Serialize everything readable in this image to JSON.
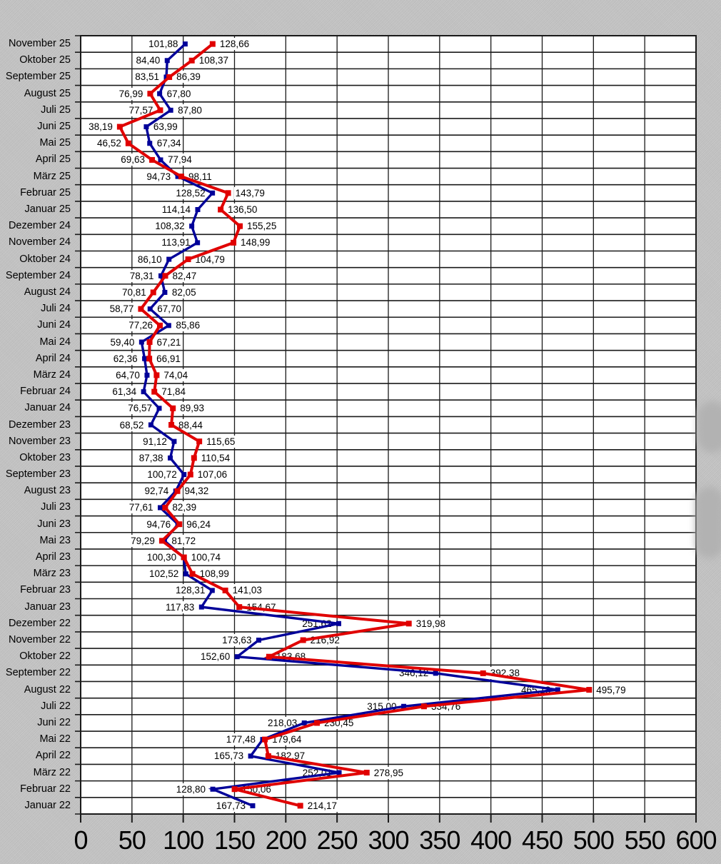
{
  "app": {
    "background_color": "#c5c5c5",
    "plot_background": "#ffffff",
    "grid_color": "#1a1a1a"
  },
  "chart_data": {
    "type": "line",
    "orientation": "horizontal_categories",
    "title": "",
    "xlabel": "",
    "ylabel": "",
    "xlim": [
      0,
      600
    ],
    "x_ticks": [
      "0",
      "50",
      "100",
      "150",
      "200",
      "250",
      "300",
      "350",
      "400",
      "450",
      "500",
      "550",
      "600"
    ],
    "grid": "on",
    "legend": "none",
    "marker": "square",
    "decimal_separator": ",",
    "categories": [
      "November 25",
      "Oktober 25",
      "September 25",
      "August 25",
      "Juli 25",
      "Juni 25",
      "Mai 25",
      "April 25",
      "März 25",
      "Februar 25",
      "Januar 25",
      "Dezember 24",
      "November 24",
      "Oktober 24",
      "September 24",
      "August 24",
      "Juli 24",
      "Juni 24",
      "Mai 24",
      "April 24",
      "März 24",
      "Februar 24",
      "Januar 24",
      "Dezember 23",
      "November 23",
      "Oktober 23",
      "September 23",
      "August 23",
      "Juli 23",
      "Juni 23",
      "Mai 23",
      "April 23",
      "März 23",
      "Februar 23",
      "Januar 23",
      "Dezember 22",
      "November 22",
      "Oktober 22",
      "September 22",
      "August 22",
      "Juli 22",
      "Juni 22",
      "Mai 22",
      "April 22",
      "März 22",
      "Februar 22",
      "Januar 22"
    ],
    "series": [
      {
        "name": "blue-series",
        "color": "#000099",
        "values": [
          101.88,
          84.4,
          83.51,
          76.99,
          87.8,
          63.99,
          67.34,
          77.94,
          94.73,
          128.52,
          114.14,
          108.32,
          113.91,
          86.1,
          78.31,
          82.05,
          67.7,
          85.86,
          59.4,
          62.36,
          64.7,
          61.34,
          76.57,
          68.52,
          91.12,
          87.38,
          100.72,
          92.74,
          77.61,
          94.76,
          81.72,
          100.3,
          102.52,
          128.31,
          117.83,
          251.62,
          173.63,
          152.6,
          346.12,
          465.18,
          315.0,
          218.03,
          177.48,
          165.73,
          252.01,
          128.8,
          167.73
        ]
      },
      {
        "name": "red-series",
        "color": "#E00000",
        "values": [
          128.66,
          108.37,
          86.39,
          67.8,
          77.57,
          38.19,
          46.52,
          69.63,
          98.11,
          143.79,
          136.5,
          155.25,
          148.99,
          104.79,
          82.47,
          70.81,
          58.77,
          77.26,
          67.21,
          66.91,
          74.04,
          71.84,
          89.93,
          88.44,
          115.65,
          110.54,
          107.06,
          94.32,
          82.39,
          96.24,
          79.29,
          100.74,
          108.99,
          141.03,
          154.67,
          319.98,
          216.92,
          183.68,
          392.38,
          495.79,
          334.76,
          230.45,
          179.64,
          182.97,
          278.95,
          150.06,
          214.17
        ]
      }
    ],
    "data_labels": {
      "blue": [
        "101,88",
        "84,40",
        "83,51",
        "76,99",
        "87,80",
        "63,99",
        "67,34",
        "77,94",
        "94,73",
        "128,52",
        "114,14",
        "108,32",
        "113,91",
        "86,10",
        "78,31",
        "82,05",
        "67,70",
        "85,86",
        "59,40",
        "62,36",
        "64,70",
        "61,34",
        "76,57",
        "68,52",
        "91,12",
        "87,38",
        "100,72",
        "92,74",
        "77,61",
        "94,76",
        "81,72",
        "100,30",
        "102,52",
        "128,31",
        "117,83",
        "251,62",
        "173,63",
        "152,60",
        "346,12",
        "465,18",
        "315,00",
        "218,03",
        "177,48",
        "165,73",
        "252,01",
        "128,80",
        "167,73"
      ],
      "red": [
        "128,66",
        "108,37",
        "86,39",
        "67,80",
        "77,57",
        "38,19",
        "46,52",
        "69,63",
        "98,11",
        "143,79",
        "136,50",
        "155,25",
        "148,99",
        "104,79",
        "82,47",
        "70,81",
        "58,77",
        "77,26",
        "67,21",
        "66,91",
        "74,04",
        "71,84",
        "89,93",
        "88,44",
        "115,65",
        "110,54",
        "107,06",
        "94,32",
        "82,39",
        "96,24",
        "79,29",
        "100,74",
        "108,99",
        "141,03",
        "154,67",
        "319,98",
        "216,92",
        "183,68",
        "392,38",
        "495,79",
        "334,76",
        "230,45",
        "179,64",
        "182,97",
        "278,95",
        "150,06",
        "214,17"
      ],
      "left_side_series": [
        "blue",
        "blue",
        "blue",
        "blue",
        "red",
        "red",
        "red",
        "red",
        "blue",
        "blue",
        "blue",
        "blue",
        "blue",
        "blue",
        "blue",
        "red",
        "red",
        "red",
        "blue",
        "blue",
        "blue",
        "blue",
        "blue",
        "blue",
        "blue",
        "blue",
        "blue",
        "blue",
        "blue",
        "blue",
        "red",
        "blue",
        "blue",
        "blue",
        "blue",
        "blue",
        "blue",
        "blue",
        "blue",
        "blue",
        "blue",
        "blue",
        "blue",
        "blue",
        "blue",
        "blue",
        "blue"
      ]
    }
  }
}
